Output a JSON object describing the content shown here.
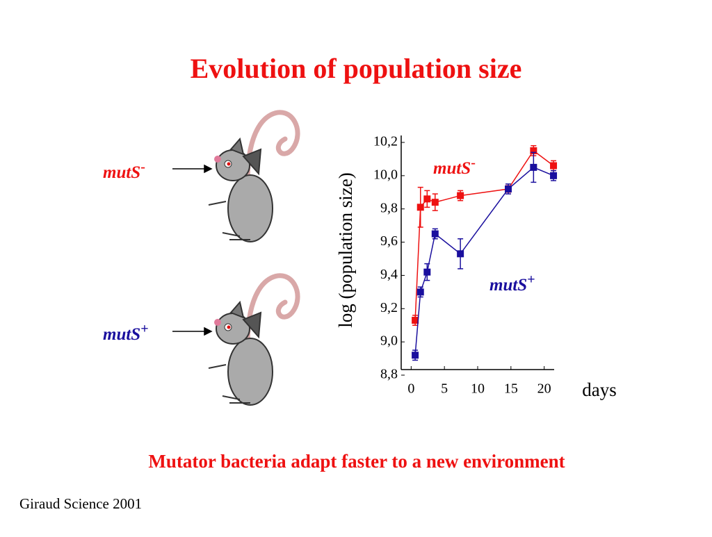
{
  "title": "Evolution of population size",
  "caption": "Mutator bacteria adapt faster to a new environment",
  "citation": "Giraud Science 2001",
  "chart_data": {
    "type": "line",
    "y_label": "log (population size)",
    "x_label": "days",
    "xlim": [
      -1.5,
      21.5
    ],
    "xticks": [
      0,
      5,
      10,
      15,
      20
    ],
    "ylim": [
      8.8,
      10.2
    ],
    "yticks": [
      {
        "value": 8.8,
        "label": "8,8"
      },
      {
        "value": 9.0,
        "label": "9,0"
      },
      {
        "value": 9.2,
        "label": "9,2"
      },
      {
        "value": 9.4,
        "label": "9,4"
      },
      {
        "value": 9.6,
        "label": "9,6"
      },
      {
        "value": 9.8,
        "label": "9,8"
      },
      {
        "value": 10.0,
        "label": "10,0"
      },
      {
        "value": 10.2,
        "label": "10,2"
      }
    ],
    "x": [
      0.6,
      1.4,
      2.4,
      3.6,
      7.4,
      14.6,
      18.4,
      21.4
    ],
    "series": [
      {
        "name": "mutS-",
        "color": "#ee1111",
        "values": [
          9.13,
          9.81,
          9.86,
          9.84,
          9.88,
          9.92,
          10.15,
          10.06
        ],
        "errors": [
          0.03,
          0.12,
          0.05,
          0.05,
          0.03,
          0.02,
          0.03,
          0.03
        ]
      },
      {
        "name": "mutS+",
        "color": "#1a0f9e",
        "values": [
          8.92,
          9.3,
          9.42,
          9.65,
          9.53,
          9.92,
          10.05,
          10.0
        ],
        "errors": [
          0.03,
          0.03,
          0.05,
          0.03,
          0.09,
          0.03,
          0.09,
          0.03
        ]
      }
    ]
  }
}
